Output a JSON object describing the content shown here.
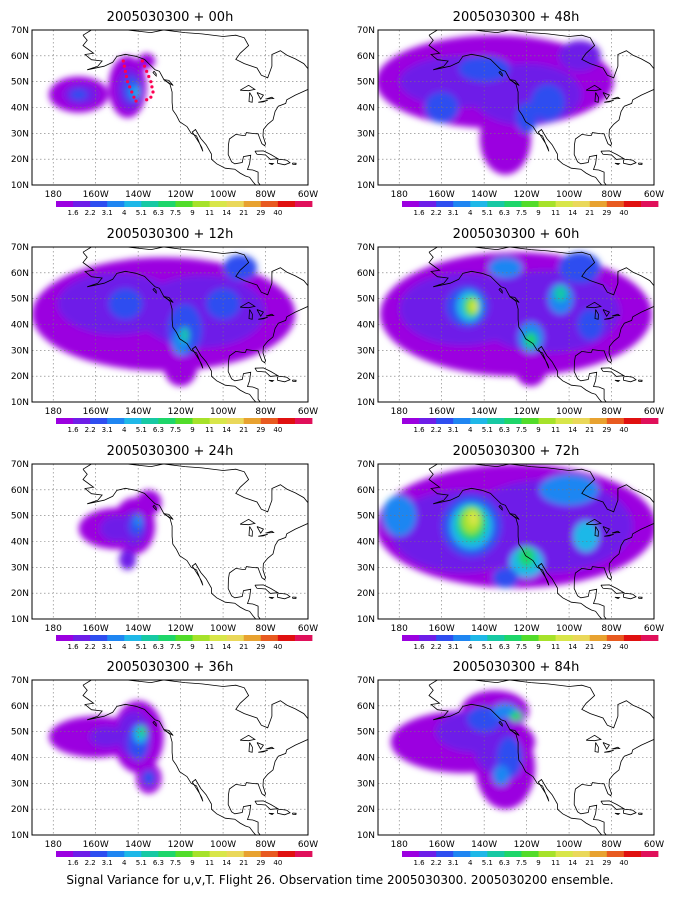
{
  "caption": "Signal Variance for u,v,T. Flight 26. Observation time 2005030300. 2005030200 ensemble.",
  "lat_labels": [
    "10N",
    "20N",
    "30N",
    "40N",
    "50N",
    "60N",
    "70N"
  ],
  "lon_labels": [
    "180",
    "160W",
    "140W",
    "120W",
    "100W",
    "80W",
    "60W"
  ],
  "colorbar": {
    "labels": [
      "1.6",
      "2.2",
      "3.1",
      "4",
      "5.1",
      "6.3",
      "7.5",
      "9",
      "11",
      "14",
      "21",
      "29",
      "40"
    ],
    "colors": [
      "#9b00e0",
      "#6e1ee8",
      "#2f4ef0",
      "#1f86f2",
      "#1fb8e8",
      "#17c9a4",
      "#1ed66a",
      "#52dc2a",
      "#a6e22a",
      "#d8e64a",
      "#ead85a",
      "#e8a230",
      "#e85a20",
      "#e01010",
      "#e0105a"
    ]
  },
  "panels": [
    {
      "title": "2005030300 + 00h"
    },
    {
      "title": "2005030300 + 48h"
    },
    {
      "title": "2005030300 + 12h"
    },
    {
      "title": "2005030300 + 60h"
    },
    {
      "title": "2005030300 + 24h"
    },
    {
      "title": "2005030300 + 72h"
    },
    {
      "title": "2005030300 + 36h"
    },
    {
      "title": "2005030300 + 84h"
    }
  ],
  "map_extent": {
    "lon": [
      -190,
      -60
    ],
    "lat": [
      10,
      70
    ]
  }
}
